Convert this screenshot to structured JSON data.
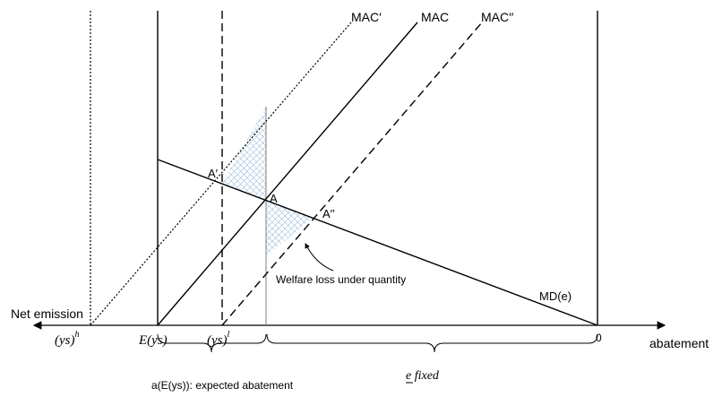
{
  "curves": {
    "mac": "MAC",
    "mac_prime": "MAC′",
    "mac_double_prime": "MAC′′",
    "md": "MD(e)"
  },
  "points": {
    "a": "A",
    "a_prime": "A′",
    "a_double_prime": "A′′"
  },
  "axis": {
    "left_label": "Net emission",
    "right_label": "abatement",
    "origin_label": "0"
  },
  "ticks": {
    "ys_h_base": "(ys)",
    "ys_h_sup": "h",
    "e_ys": "E(ys)",
    "ys_l_base": "(ys)",
    "ys_l_sup": "l"
  },
  "annotations": {
    "welfare_loss": "Welfare loss under quantity",
    "expected_abatement": "a(E(ys)): expected abatement",
    "e_fixed": "e fixed"
  },
  "colors": {
    "hatch": "#8fb4d6",
    "line": "#000000",
    "guide": "#7f7f7f"
  }
}
